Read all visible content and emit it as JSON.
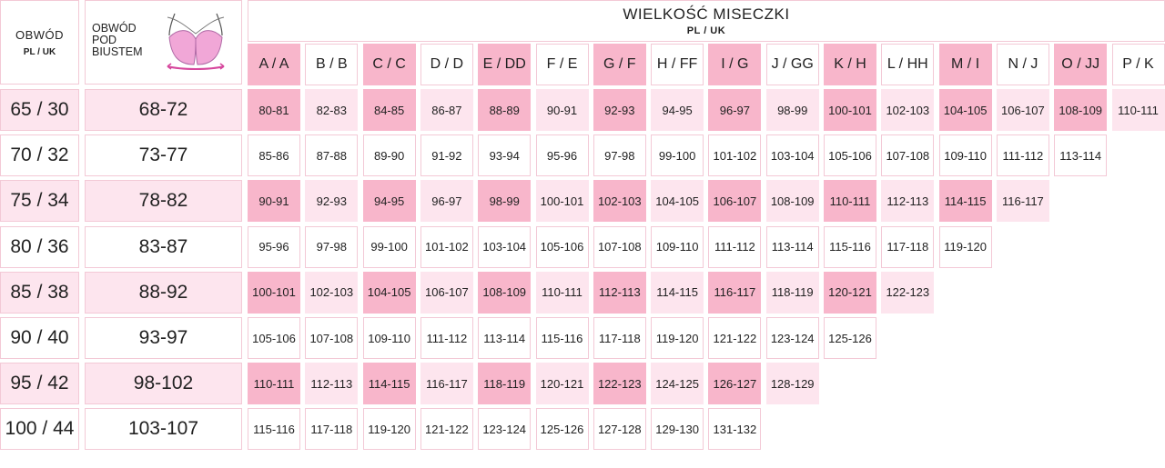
{
  "header": {
    "band_title": "OBWÓD",
    "band_sub": "PL / UK",
    "under_title_line1": "OBWÓD",
    "under_title_line2": "POD",
    "under_title_line3": "BIUSTEM",
    "cup_title": "WIELKOŚĆ MISECZKI",
    "cup_sub": "PL / UK"
  },
  "colors": {
    "strong_pink": "#f8b6cb",
    "light_pink": "#fde5ee",
    "border_pink": "#f3c9d6"
  },
  "cups": [
    "A / A",
    "B / B",
    "C / C",
    "D / D",
    "E / DD",
    "F / E",
    "G / F",
    "H / FF",
    "I / G",
    "J / GG",
    "K / H",
    "L / HH",
    "M / I",
    "N / J",
    "O / JJ",
    "P / K"
  ],
  "rows": [
    {
      "band": "65 / 30",
      "under": "68-72",
      "values": [
        "80-81",
        "82-83",
        "84-85",
        "86-87",
        "88-89",
        "90-91",
        "92-93",
        "94-95",
        "96-97",
        "98-99",
        "100-101",
        "102-103",
        "104-105",
        "106-107",
        "108-109",
        "110-111"
      ]
    },
    {
      "band": "70 / 32",
      "under": "73-77",
      "values": [
        "85-86",
        "87-88",
        "89-90",
        "91-92",
        "93-94",
        "95-96",
        "97-98",
        "99-100",
        "101-102",
        "103-104",
        "105-106",
        "107-108",
        "109-110",
        "111-112",
        "113-114"
      ]
    },
    {
      "band": "75 / 34",
      "under": "78-82",
      "values": [
        "90-91",
        "92-93",
        "94-95",
        "96-97",
        "98-99",
        "100-101",
        "102-103",
        "104-105",
        "106-107",
        "108-109",
        "110-111",
        "112-113",
        "114-115",
        "116-117"
      ]
    },
    {
      "band": "80 / 36",
      "under": "83-87",
      "values": [
        "95-96",
        "97-98",
        "99-100",
        "101-102",
        "103-104",
        "105-106",
        "107-108",
        "109-110",
        "111-112",
        "113-114",
        "115-116",
        "117-118",
        "119-120"
      ]
    },
    {
      "band": "85 / 38",
      "under": "88-92",
      "values": [
        "100-101",
        "102-103",
        "104-105",
        "106-107",
        "108-109",
        "110-111",
        "112-113",
        "114-115",
        "116-117",
        "118-119",
        "120-121",
        "122-123"
      ]
    },
    {
      "band": "90 / 40",
      "under": "93-97",
      "values": [
        "105-106",
        "107-108",
        "109-110",
        "111-112",
        "113-114",
        "115-116",
        "117-118",
        "119-120",
        "121-122",
        "123-124",
        "125-126"
      ]
    },
    {
      "band": "95 / 42",
      "under": "98-102",
      "values": [
        "110-111",
        "112-113",
        "114-115",
        "116-117",
        "118-119",
        "120-121",
        "122-123",
        "124-125",
        "126-127",
        "128-129"
      ]
    },
    {
      "band": "100 / 44",
      "under": "103-107",
      "values": [
        "115-116",
        "117-118",
        "119-120",
        "121-122",
        "123-124",
        "125-126",
        "127-128",
        "129-130",
        "131-132"
      ]
    }
  ]
}
